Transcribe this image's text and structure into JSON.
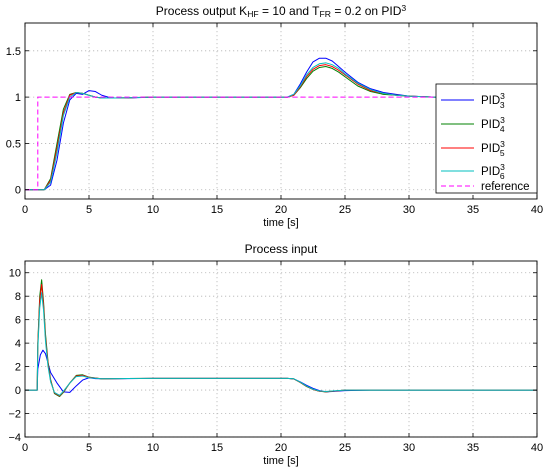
{
  "chart_data": [
    {
      "type": "line",
      "title_parts": [
        {
          "t": "Process output K"
        },
        {
          "t": "HF",
          "sub": true
        },
        {
          "t": " = 10 and T"
        },
        {
          "t": "FR",
          "sub": true
        },
        {
          "t": " = 0.2 on PID"
        },
        {
          "t": "3",
          "sup": true
        }
      ],
      "xlabel": "time [s]",
      "ylabel": "",
      "xlim": [
        0,
        40
      ],
      "ylim": [
        -0.1,
        1.8
      ],
      "xticks": [
        0,
        5,
        10,
        15,
        20,
        25,
        30,
        35,
        40
      ],
      "yticks": [
        0,
        0.5,
        1,
        1.5
      ],
      "ytick_labels": [
        "0",
        "0.5",
        "1",
        "1.5"
      ],
      "grid": true,
      "legend_position": "right",
      "series": [
        {
          "name": "PID",
          "sup": "3",
          "sub": "3",
          "color": "#0000ff",
          "style": "solid",
          "x": [
            0,
            1.5,
            2.0,
            2.5,
            3.0,
            3.5,
            4.0,
            4.5,
            5.0,
            5.5,
            6.0,
            6.5,
            7.0,
            8.0,
            10,
            15,
            20.5,
            21.0,
            21.5,
            22.0,
            22.5,
            23.0,
            23.5,
            24.0,
            24.5,
            25.0,
            26.0,
            27.0,
            28.0,
            29.0,
            30.0,
            32.0,
            40
          ],
          "y": [
            0,
            0,
            0.05,
            0.32,
            0.72,
            0.97,
            1.04,
            1.03,
            1.07,
            1.06,
            1.02,
            1.0,
            0.99,
            0.99,
            1.0,
            1.0,
            1.0,
            1.03,
            1.14,
            1.27,
            1.38,
            1.42,
            1.42,
            1.39,
            1.33,
            1.27,
            1.16,
            1.09,
            1.05,
            1.03,
            1.01,
            1.0,
            1.0
          ]
        },
        {
          "name": "PID",
          "sup": "3",
          "sub": "4",
          "color": "#008000",
          "style": "solid",
          "x": [
            0,
            1.5,
            2.0,
            2.5,
            3.0,
            3.5,
            4.0,
            4.5,
            5.0,
            5.5,
            6.0,
            7.0,
            10,
            15,
            20.5,
            21.0,
            21.5,
            22.0,
            22.5,
            23.0,
            23.5,
            24.0,
            24.5,
            25.0,
            26.0,
            27.0,
            28.0,
            29.0,
            30.0,
            32.0,
            40
          ],
          "y": [
            0,
            0,
            0.12,
            0.5,
            0.87,
            1.03,
            1.05,
            1.04,
            1.02,
            1.0,
            0.99,
            0.99,
            1.0,
            1.0,
            1.0,
            1.02,
            1.1,
            1.2,
            1.28,
            1.32,
            1.33,
            1.31,
            1.27,
            1.22,
            1.12,
            1.06,
            1.03,
            1.02,
            1.01,
            1.0,
            1.0
          ]
        },
        {
          "name": "PID",
          "sup": "3",
          "sub": "5",
          "color": "#ff0000",
          "style": "solid",
          "x": [
            0,
            1.5,
            2.0,
            2.5,
            3.0,
            3.5,
            4.0,
            4.5,
            5.0,
            5.5,
            6.0,
            7.0,
            10,
            15,
            20.5,
            21.0,
            21.5,
            22.0,
            22.5,
            23.0,
            23.5,
            24.0,
            24.5,
            25.0,
            26.0,
            27.0,
            28.0,
            29.0,
            30.0,
            32.0,
            40
          ],
          "y": [
            0,
            0,
            0.1,
            0.45,
            0.83,
            1.02,
            1.05,
            1.04,
            1.02,
            1.0,
            0.99,
            0.99,
            1.0,
            1.0,
            1.0,
            1.02,
            1.11,
            1.22,
            1.3,
            1.34,
            1.35,
            1.33,
            1.29,
            1.24,
            1.14,
            1.07,
            1.04,
            1.02,
            1.01,
            1.0,
            1.0
          ]
        },
        {
          "name": "PID",
          "sup": "3",
          "sub": "6",
          "color": "#00bfbf",
          "style": "solid",
          "x": [
            0,
            1.5,
            2.0,
            2.5,
            3.0,
            3.5,
            4.0,
            4.5,
            5.0,
            5.5,
            6.0,
            7.0,
            10,
            15,
            20.5,
            21.0,
            21.5,
            22.0,
            22.5,
            23.0,
            23.5,
            24.0,
            24.5,
            25.0,
            26.0,
            27.0,
            28.0,
            29.0,
            30.0,
            32.0,
            40
          ],
          "y": [
            0,
            0,
            0.08,
            0.4,
            0.8,
            1.0,
            1.05,
            1.04,
            1.02,
            1.0,
            0.99,
            0.99,
            1.0,
            1.0,
            1.0,
            1.03,
            1.12,
            1.24,
            1.32,
            1.36,
            1.37,
            1.35,
            1.31,
            1.25,
            1.15,
            1.08,
            1.04,
            1.02,
            1.01,
            1.0,
            1.0
          ]
        },
        {
          "name": "reference",
          "color": "#ff00ff",
          "style": "dashed",
          "x": [
            0,
            1,
            1,
            40
          ],
          "y": [
            0,
            0,
            1,
            1
          ]
        }
      ]
    },
    {
      "type": "line",
      "title_parts": [
        {
          "t": "Process input"
        }
      ],
      "xlabel": "time [s]",
      "ylabel": "",
      "xlim": [
        0,
        40
      ],
      "ylim": [
        -4,
        11
      ],
      "xticks": [
        0,
        5,
        10,
        15,
        20,
        25,
        30,
        35,
        40
      ],
      "yticks": [
        -4,
        -2,
        0,
        2,
        4,
        6,
        8,
        10
      ],
      "ytick_labels": [
        "−4",
        "−2",
        "0",
        "2",
        "4",
        "6",
        "8",
        "10"
      ],
      "grid": true,
      "series": [
        {
          "name": "PID",
          "sup": "3",
          "sub": "3",
          "color": "#0000ff",
          "style": "solid",
          "x": [
            0,
            0.95,
            1.0,
            1.2,
            1.4,
            1.6,
            1.8,
            2.0,
            2.5,
            3.0,
            3.5,
            4.0,
            4.5,
            5.0,
            5.5,
            6.0,
            7.0,
            10,
            15,
            20.5,
            21.0,
            21.5,
            22.0,
            22.5,
            23.0,
            23.5,
            24.0,
            25.0,
            27.0,
            30.0,
            40
          ],
          "y": [
            0,
            0,
            1.8,
            3.0,
            3.4,
            3.1,
            2.3,
            1.5,
            0.6,
            -0.15,
            -0.2,
            0.35,
            0.85,
            1.05,
            0.98,
            0.96,
            0.97,
            1.0,
            1.0,
            1.0,
            0.95,
            0.7,
            0.4,
            0.15,
            -0.05,
            -0.15,
            -0.12,
            -0.05,
            0.0,
            0.0,
            0.0
          ]
        },
        {
          "name": "PID",
          "sup": "3",
          "sub": "4",
          "color": "#008000",
          "style": "solid",
          "x": [
            0,
            0.95,
            1.0,
            1.15,
            1.3,
            1.45,
            1.6,
            1.8,
            2.0,
            2.3,
            2.7,
            3.0,
            3.5,
            4.0,
            4.5,
            5.0,
            6.0,
            7.0,
            10,
            15,
            20.5,
            21.0,
            21.5,
            22.0,
            22.5,
            23.0,
            23.5,
            24.0,
            25.0,
            27.0,
            30.0,
            40
          ],
          "y": [
            0,
            0,
            4.0,
            8.0,
            9.4,
            7.5,
            4.8,
            2.4,
            0.9,
            -0.3,
            -0.55,
            -0.2,
            0.6,
            1.25,
            1.3,
            1.1,
            0.95,
            0.98,
            1.0,
            1.0,
            1.0,
            0.95,
            0.65,
            0.3,
            0.05,
            -0.1,
            -0.15,
            -0.1,
            0.0,
            0.0,
            0.0,
            0.0
          ]
        },
        {
          "name": "PID",
          "sup": "3",
          "sub": "5",
          "color": "#ff0000",
          "style": "solid",
          "x": [
            0,
            0.95,
            1.0,
            1.15,
            1.3,
            1.45,
            1.6,
            1.8,
            2.0,
            2.3,
            2.7,
            3.0,
            3.5,
            4.0,
            4.5,
            5.0,
            6.0,
            7.0,
            10,
            15,
            20.5,
            21.0,
            21.5,
            22.0,
            22.5,
            23.0,
            23.5,
            24.0,
            25.0,
            27.0,
            30.0,
            40
          ],
          "y": [
            0,
            0,
            3.8,
            7.6,
            9.0,
            7.2,
            4.5,
            2.2,
            0.8,
            -0.25,
            -0.5,
            -0.15,
            0.6,
            1.2,
            1.25,
            1.08,
            0.96,
            0.98,
            1.0,
            1.0,
            1.0,
            0.95,
            0.66,
            0.32,
            0.06,
            -0.1,
            -0.14,
            -0.1,
            0.0,
            0.0,
            0.0,
            0.0
          ]
        },
        {
          "name": "PID",
          "sup": "3",
          "sub": "6",
          "color": "#00bfbf",
          "style": "solid",
          "x": [
            0,
            0.95,
            1.0,
            1.15,
            1.3,
            1.45,
            1.6,
            1.8,
            2.0,
            2.3,
            2.7,
            3.0,
            3.5,
            4.0,
            4.5,
            5.0,
            6.0,
            7.0,
            10,
            15,
            20.5,
            21.0,
            21.5,
            22.0,
            22.5,
            23.0,
            23.5,
            24.0,
            25.0,
            27.0,
            30.0,
            40
          ],
          "y": [
            0,
            0,
            3.5,
            7.0,
            8.3,
            6.8,
            4.2,
            2.0,
            0.7,
            -0.2,
            -0.45,
            -0.1,
            0.6,
            1.15,
            1.2,
            1.05,
            0.97,
            0.98,
            1.0,
            1.0,
            1.0,
            0.96,
            0.68,
            0.34,
            0.08,
            -0.08,
            -0.12,
            -0.08,
            0.0,
            0.0,
            0.0,
            0.0
          ]
        }
      ]
    }
  ]
}
